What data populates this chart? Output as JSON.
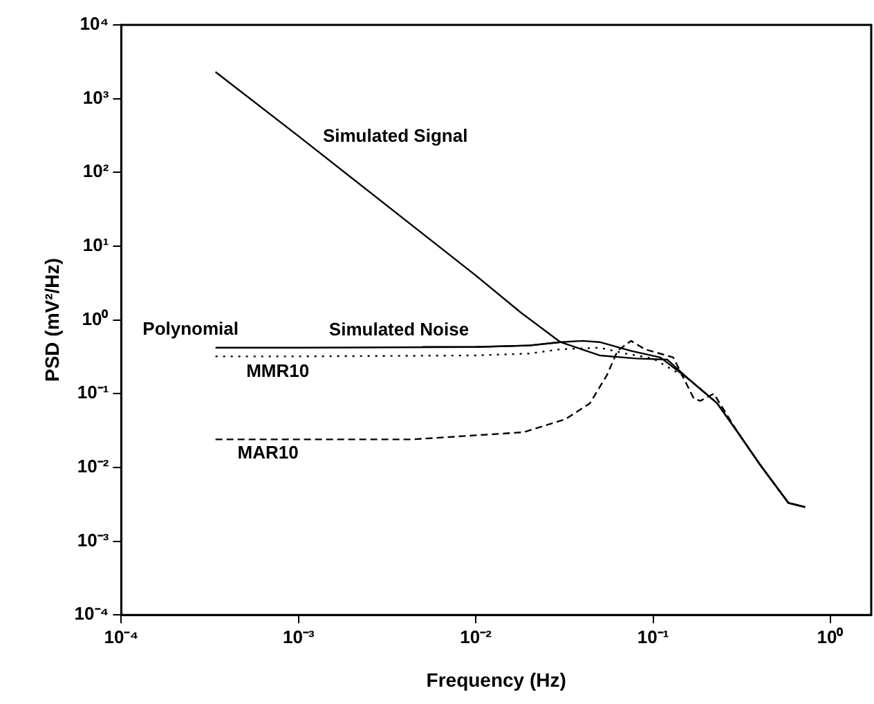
{
  "chart_data": {
    "type": "line",
    "xlabel": "Frequency (Hz)",
    "ylabel": "PSD (mV²/Hz)",
    "log": "xy",
    "grid": false,
    "legend": false,
    "marker": "none",
    "xlim": [
      0.0001,
      1.7
    ],
    "xticks": [
      {
        "value": 0.0001,
        "label": "10⁻⁴"
      },
      {
        "value": 0.001,
        "label": "10⁻³"
      },
      {
        "value": 0.01,
        "label": "10⁻²"
      },
      {
        "value": 0.1,
        "label": "10⁻¹"
      },
      {
        "value": 1,
        "label": "10⁰"
      }
    ],
    "ylim": [
      0.0001,
      10000
    ],
    "yticks": [
      {
        "value": 0.0001,
        "label": "10⁻⁴"
      },
      {
        "value": 0.001,
        "label": "10⁻³"
      },
      {
        "value": 0.01,
        "label": "10⁻²"
      },
      {
        "value": 0.1,
        "label": "10⁻¹"
      },
      {
        "value": 1,
        "label": "10⁰"
      },
      {
        "value": 10,
        "label": "10¹"
      },
      {
        "value": 100,
        "label": "10²"
      },
      {
        "value": 1000,
        "label": "10³"
      },
      {
        "value": 10000,
        "label": "10⁴"
      }
    ],
    "series": [
      {
        "name": "Simulated Signal",
        "color": "#000000",
        "line_style": "solid",
        "x": [
          0.00034,
          0.001,
          0.01,
          0.018,
          0.03,
          0.05,
          0.08,
          0.12,
          0.16,
          0.23,
          0.3,
          0.4,
          0.51,
          0.58,
          0.72
        ],
        "values": [
          2300,
          310,
          4,
          1.25,
          0.5,
          0.33,
          0.3,
          0.29,
          0.155,
          0.074,
          0.03,
          0.011,
          0.005,
          0.0033,
          0.0029
        ]
      },
      {
        "name": "Polynomial",
        "color": "#000000",
        "line_style": "solid",
        "x": [
          0.00034,
          0.001,
          0.01,
          0.02,
          0.03,
          0.04,
          0.05,
          0.075,
          0.11,
          0.16,
          0.23,
          0.3,
          0.4,
          0.51,
          0.58,
          0.72
        ],
        "values": [
          0.42,
          0.42,
          0.43,
          0.45,
          0.5,
          0.52,
          0.5,
          0.38,
          0.31,
          0.155,
          0.074,
          0.03,
          0.011,
          0.005,
          0.0033,
          0.0029
        ]
      },
      {
        "name": "Simulated Noise",
        "color": "#000000",
        "line_style": "solid",
        "x": [
          0.005,
          0.01,
          0.02,
          0.03
        ],
        "values": [
          0.43,
          0.43,
          0.45,
          0.5
        ]
      },
      {
        "name": "MMR10",
        "color": "#000000",
        "line_style": "dotted",
        "x": [
          0.00034,
          0.001,
          0.01,
          0.02,
          0.03,
          0.05,
          0.07,
          0.1,
          0.16,
          0.23,
          0.3,
          0.4,
          0.51,
          0.58,
          0.72
        ],
        "values": [
          0.32,
          0.32,
          0.33,
          0.35,
          0.4,
          0.42,
          0.35,
          0.3,
          0.155,
          0.074,
          0.03,
          0.011,
          0.005,
          0.0033,
          0.0029
        ]
      },
      {
        "name": "MAR10",
        "color": "#000000",
        "line_style": "dashed",
        "x": [
          0.00034,
          0.001,
          0.0044,
          0.0186,
          0.032,
          0.044,
          0.055,
          0.063,
          0.075,
          0.09,
          0.13,
          0.17,
          0.185,
          0.22,
          0.3,
          0.4,
          0.51,
          0.58,
          0.72
        ],
        "values": [
          0.024,
          0.024,
          0.024,
          0.03,
          0.045,
          0.074,
          0.18,
          0.38,
          0.52,
          0.4,
          0.31,
          0.085,
          0.08,
          0.1,
          0.03,
          0.011,
          0.005,
          0.0033,
          0.0029
        ]
      }
    ]
  }
}
